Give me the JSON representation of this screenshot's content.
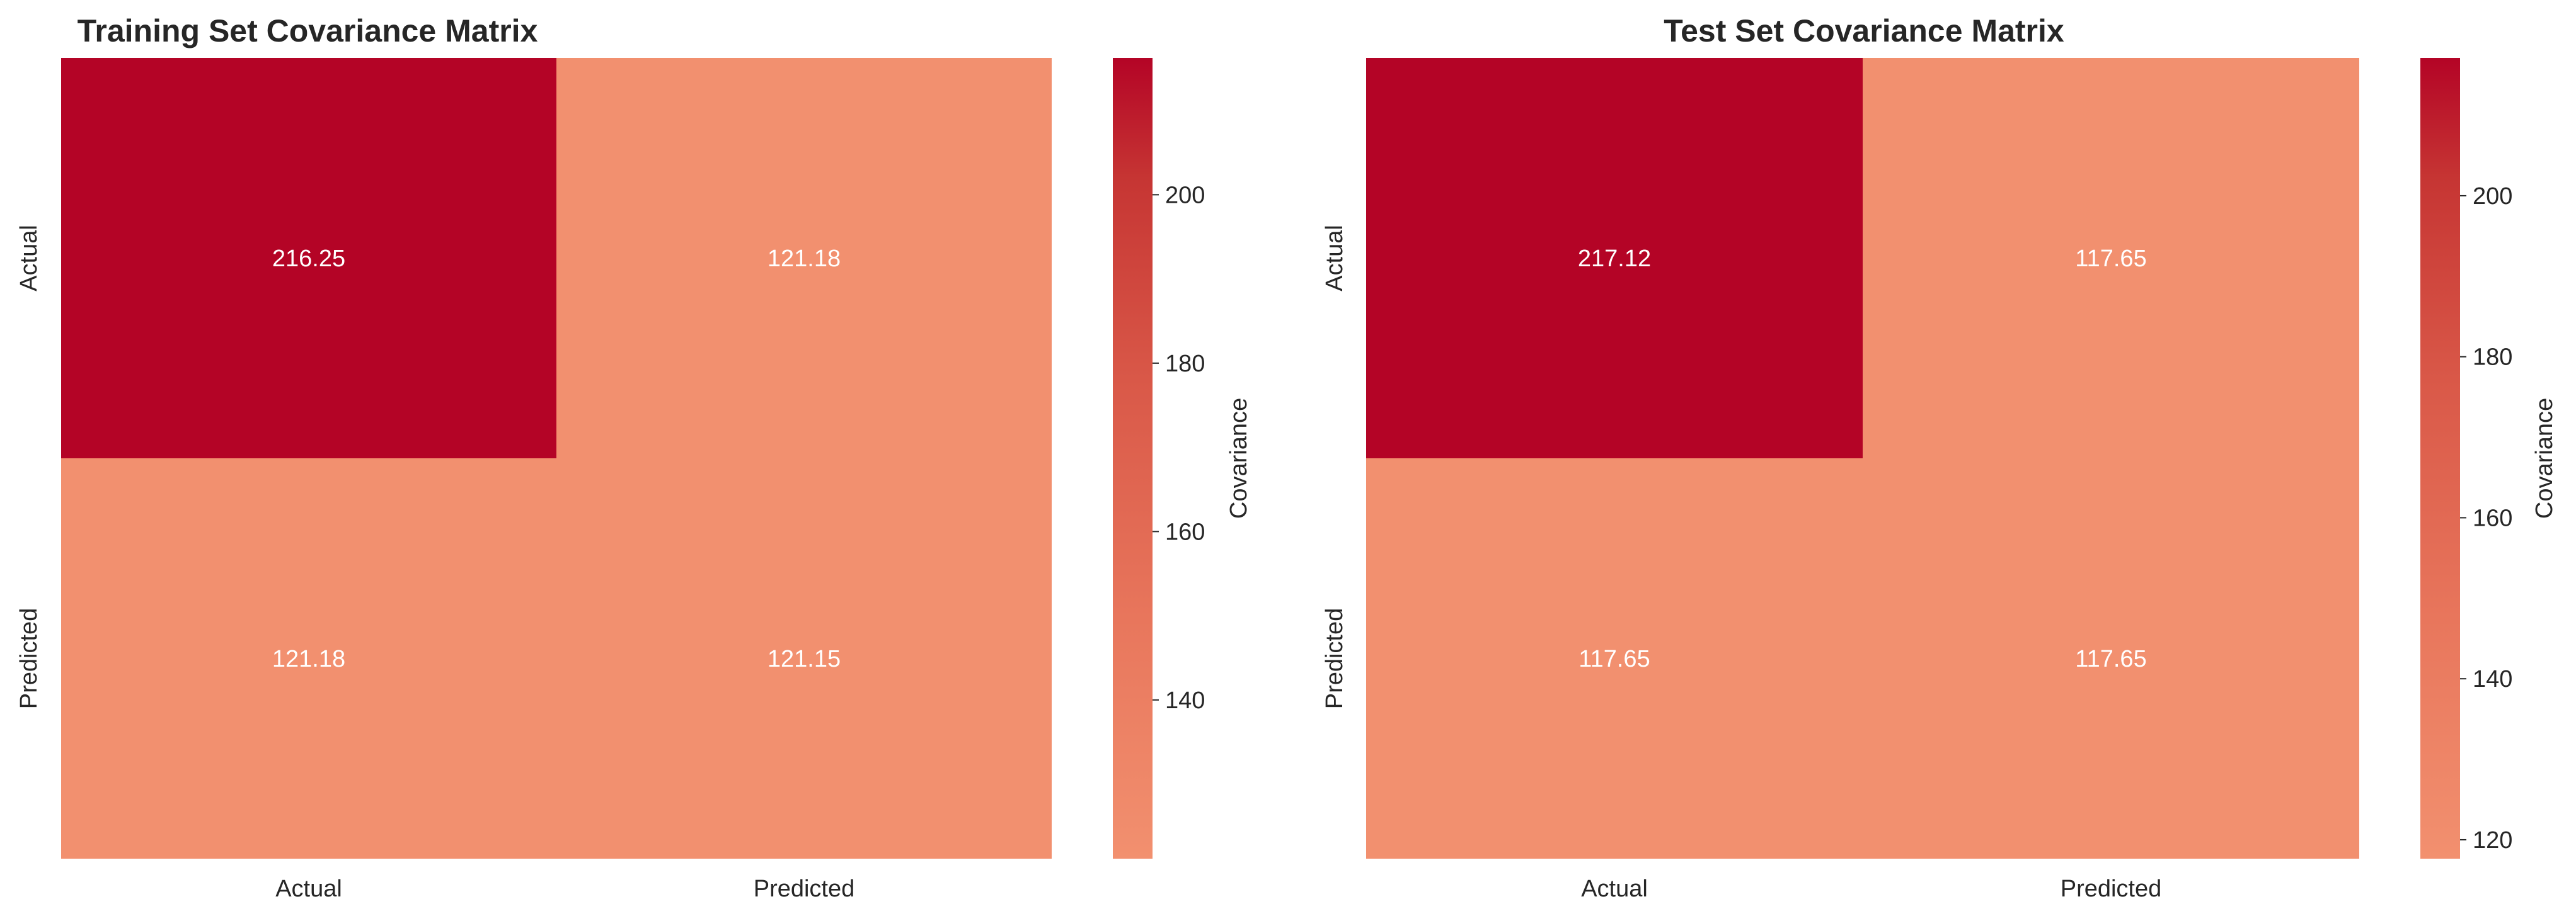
{
  "chart_data": [
    {
      "type": "heatmap",
      "title": "Training Set Covariance Matrix",
      "x_categories": [
        "Actual",
        "Predicted"
      ],
      "y_categories": [
        "Actual",
        "Predicted"
      ],
      "values": [
        [
          216.25,
          121.18
        ],
        [
          121.18,
          121.15
        ]
      ],
      "annotations": [
        [
          "216.25",
          "121.18"
        ],
        [
          "121.18",
          "121.15"
        ]
      ],
      "colorbar": {
        "label": "Covariance",
        "range": [
          121.15,
          216.25
        ],
        "ticks": [
          140,
          160,
          180,
          200
        ],
        "tick_labels": [
          "140",
          "160",
          "180",
          "200"
        ]
      },
      "colormap": "coolwarm",
      "grid": false
    },
    {
      "type": "heatmap",
      "title": "Test Set Covariance Matrix",
      "x_categories": [
        "Actual",
        "Predicted"
      ],
      "y_categories": [
        "Actual",
        "Predicted"
      ],
      "values": [
        [
          217.12,
          117.65
        ],
        [
          117.65,
          117.65
        ]
      ],
      "annotations": [
        [
          "217.12",
          "117.65"
        ],
        [
          "117.65",
          "117.65"
        ]
      ],
      "colorbar": {
        "label": "Covariance",
        "range": [
          117.65,
          217.12
        ],
        "ticks": [
          120,
          140,
          160,
          180,
          200
        ],
        "tick_labels": [
          "120",
          "140",
          "160",
          "180",
          "200"
        ]
      },
      "colormap": "coolwarm",
      "grid": false
    }
  ]
}
